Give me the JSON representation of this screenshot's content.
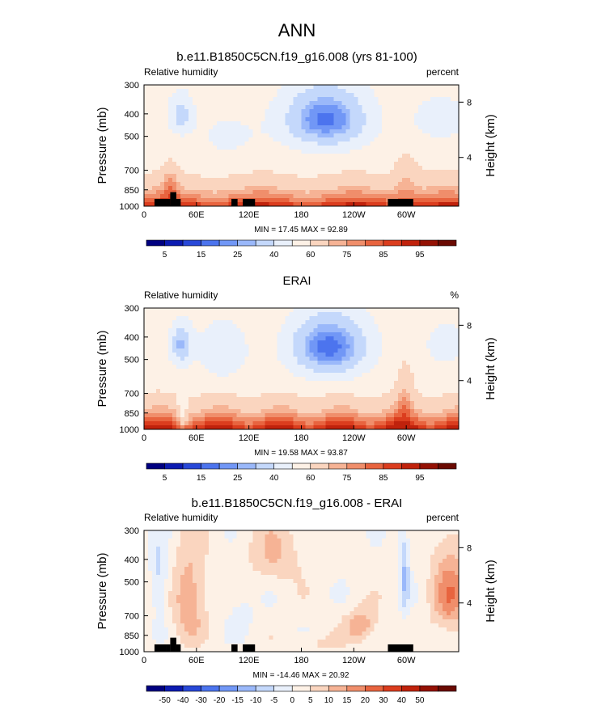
{
  "figure": {
    "title": "ANN"
  },
  "colors": {
    "abs_levels": [
      "#000080",
      "#0c1bb1",
      "#2848d8",
      "#4c74ee",
      "#7197f6",
      "#9ab8fa",
      "#c4d8fb",
      "#e9f0fb",
      "#fdf1e6",
      "#fad5bf",
      "#f6b395",
      "#f08e6b",
      "#e8643f",
      "#db3d1e",
      "#c0220c",
      "#941104",
      "#6a0a02"
    ],
    "diff_levels": [
      "#000080",
      "#0c1bb1",
      "#2848d8",
      "#4c74ee",
      "#7197f6",
      "#9ab8fa",
      "#c4d8fb",
      "#e9f0fb",
      "#fdf1e6",
      "#fad5bf",
      "#f6b395",
      "#f08e6b",
      "#e8643f",
      "#db3d1e",
      "#c0220c",
      "#941104",
      "#6a0a02"
    ],
    "topography": "#000000"
  },
  "chart_data": [
    {
      "type": "heatmap",
      "title": "b.e11.B1850C5CN.f19_g16.008 (yrs 81-100)",
      "subtitle_left": "Relative humidity",
      "subtitle_right": "percent",
      "ylabel": "Pressure (mb)",
      "ylabel_right": "Height (km)",
      "xticks": [
        "0",
        "60E",
        "120E",
        "180",
        "120W",
        "60W"
      ],
      "x_tick_values": [
        0,
        60,
        120,
        180,
        240,
        300
      ],
      "xlim": [
        0,
        360
      ],
      "yticks": [
        "300",
        "400",
        "500",
        "700",
        "850",
        "1000"
      ],
      "y_tick_values": [
        300,
        400,
        500,
        700,
        850,
        1000
      ],
      "ylim": [
        1000,
        300
      ],
      "y_scale": "log",
      "right_ticks": [
        "8",
        "4"
      ],
      "right_tick_values": [
        8,
        4
      ],
      "min_max_text": "MIN = 17.45  MAX = 92.89",
      "min": 17.45,
      "max": 92.89,
      "colorbar_labels": [
        "5",
        "15",
        "25",
        "40",
        "60",
        "75",
        "85",
        "95"
      ],
      "colorbar_levels": [
        0,
        5,
        10,
        15,
        20,
        25,
        30,
        40,
        50,
        60,
        70,
        75,
        80,
        85,
        90,
        95,
        100
      ],
      "topography": true
    },
    {
      "type": "heatmap",
      "title": "ERAI",
      "subtitle_left": "Relative humidity",
      "subtitle_right": "%",
      "ylabel": "Pressure (mb)",
      "ylabel_right": "Height (km)",
      "xticks": [
        "0",
        "60E",
        "120E",
        "180",
        "120W",
        "60W"
      ],
      "x_tick_values": [
        0,
        60,
        120,
        180,
        240,
        300
      ],
      "xlim": [
        0,
        360
      ],
      "yticks": [
        "300",
        "400",
        "500",
        "700",
        "850",
        "1000"
      ],
      "y_tick_values": [
        300,
        400,
        500,
        700,
        850,
        1000
      ],
      "ylim": [
        1000,
        300
      ],
      "y_scale": "log",
      "right_ticks": [
        "8",
        "4"
      ],
      "right_tick_values": [
        8,
        4
      ],
      "min_max_text": "MIN = 19.58  MAX = 93.87",
      "min": 19.58,
      "max": 93.87,
      "colorbar_labels": [
        "5",
        "15",
        "25",
        "40",
        "60",
        "75",
        "85",
        "95"
      ],
      "colorbar_levels": [
        0,
        5,
        10,
        15,
        20,
        25,
        30,
        40,
        50,
        60,
        70,
        75,
        80,
        85,
        90,
        95,
        100
      ],
      "topography": false
    },
    {
      "type": "heatmap",
      "title": "b.e11.B1850C5CN.f19_g16.008 - ERAI",
      "subtitle_left": "Relative humidity",
      "subtitle_right": "percent",
      "ylabel": "Pressure (mb)",
      "ylabel_right": "Height (km)",
      "xticks": [
        "0",
        "60E",
        "120E",
        "180",
        "120W",
        "60W"
      ],
      "x_tick_values": [
        0,
        60,
        120,
        180,
        240,
        300
      ],
      "xlim": [
        0,
        360
      ],
      "yticks": [
        "300",
        "400",
        "500",
        "700",
        "850",
        "1000"
      ],
      "y_tick_values": [
        300,
        400,
        500,
        700,
        850,
        1000
      ],
      "ylim": [
        1000,
        300
      ],
      "y_scale": "log",
      "right_ticks": [
        "8",
        "4"
      ],
      "right_tick_values": [
        8,
        4
      ],
      "min_max_text": "MIN = -14.46  MAX = 20.92",
      "min": -14.46,
      "max": 20.92,
      "colorbar_labels": [
        "-50",
        "-40",
        "-30",
        "-20",
        "-15",
        "-10",
        "-5",
        "0",
        "5",
        "10",
        "15",
        "20",
        "30",
        "40",
        "50"
      ],
      "colorbar_levels": [
        -60,
        -50,
        -40,
        -30,
        -20,
        -15,
        -10,
        -5,
        0,
        5,
        10,
        15,
        20,
        30,
        40,
        50,
        60
      ],
      "topography": true
    }
  ]
}
